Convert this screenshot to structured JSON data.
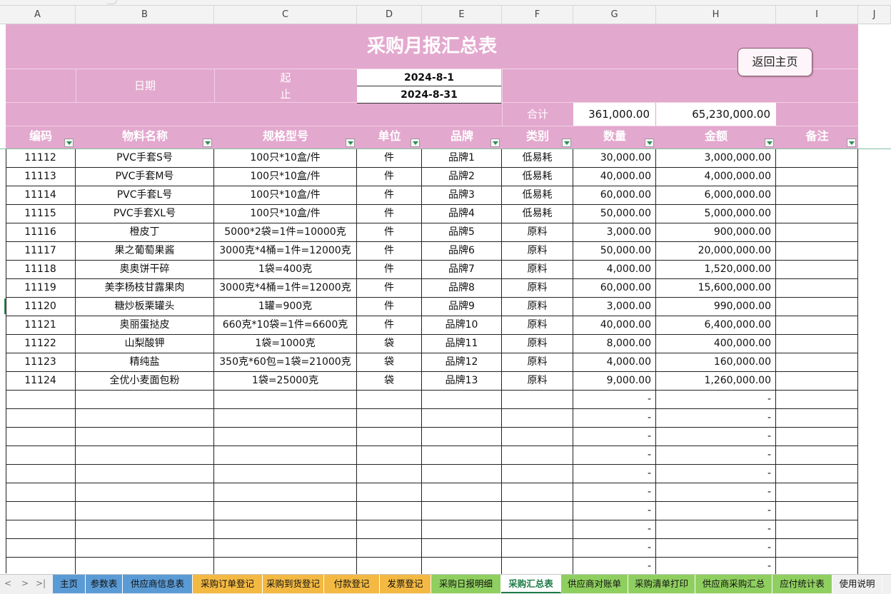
{
  "columns": [
    "A",
    "B",
    "C",
    "D",
    "E",
    "F",
    "G",
    "H",
    "I",
    "J"
  ],
  "title": "采购月报汇总表",
  "date_label": "日期",
  "start_label": "起",
  "end_label": "止",
  "start_date": "2024-8-1",
  "end_date": "2024-8-31",
  "return_button": "返回主页",
  "total_label": "合计",
  "total_qty": "361,000.00",
  "total_amount": "65,230,000.00",
  "headers": [
    "编码",
    "物料名称",
    "规格型号",
    "单位",
    "品牌",
    "类别",
    "数量",
    "金额",
    "备注"
  ],
  "rows": [
    {
      "code": "11112",
      "name": "PVC手套S号",
      "spec": "100只*10盒/件",
      "unit": "件",
      "brand": "品牌1",
      "cat": "低易耗",
      "qty": "30,000.00",
      "amount": "3,000,000.00",
      "note": ""
    },
    {
      "code": "11113",
      "name": "PVC手套M号",
      "spec": "100只*10盒/件",
      "unit": "件",
      "brand": "品牌2",
      "cat": "低易耗",
      "qty": "40,000.00",
      "amount": "4,000,000.00",
      "note": ""
    },
    {
      "code": "11114",
      "name": "PVC手套L号",
      "spec": "100只*10盒/件",
      "unit": "件",
      "brand": "品牌3",
      "cat": "低易耗",
      "qty": "60,000.00",
      "amount": "6,000,000.00",
      "note": ""
    },
    {
      "code": "11115",
      "name": "PVC手套XL号",
      "spec": "100只*10盒/件",
      "unit": "件",
      "brand": "品牌4",
      "cat": "低易耗",
      "qty": "50,000.00",
      "amount": "5,000,000.00",
      "note": ""
    },
    {
      "code": "11116",
      "name": "橙皮丁",
      "spec": "5000*2袋=1件=10000克",
      "unit": "件",
      "brand": "品牌5",
      "cat": "原料",
      "qty": "3,000.00",
      "amount": "900,000.00",
      "note": ""
    },
    {
      "code": "11117",
      "name": "果之葡萄果酱",
      "spec": "3000克*4桶=1件=12000克",
      "unit": "件",
      "brand": "品牌6",
      "cat": "原料",
      "qty": "50,000.00",
      "amount": "20,000,000.00",
      "note": ""
    },
    {
      "code": "11118",
      "name": "奥奥饼干碎",
      "spec": "1袋=400克",
      "unit": "件",
      "brand": "品牌7",
      "cat": "原料",
      "qty": "4,000.00",
      "amount": "1,520,000.00",
      "note": ""
    },
    {
      "code": "11119",
      "name": "美李杨枝甘露果肉",
      "spec": "3000克*4桶=1件=12000克",
      "unit": "件",
      "brand": "品牌8",
      "cat": "原料",
      "qty": "60,000.00",
      "amount": "15,600,000.00",
      "note": ""
    },
    {
      "code": "11120",
      "name": "糖炒板栗罐头",
      "spec": "1罐=900克",
      "unit": "件",
      "brand": "品牌9",
      "cat": "原料",
      "qty": "3,000.00",
      "amount": "990,000.00",
      "note": ""
    },
    {
      "code": "11121",
      "name": "奥丽蛋挞皮",
      "spec": "660克*10袋=1件=6600克",
      "unit": "件",
      "brand": "品牌10",
      "cat": "原料",
      "qty": "40,000.00",
      "amount": "6,400,000.00",
      "note": ""
    },
    {
      "code": "11122",
      "name": "山梨酸钾",
      "spec": "1袋=1000克",
      "unit": "袋",
      "brand": "品牌11",
      "cat": "原料",
      "qty": "8,000.00",
      "amount": "400,000.00",
      "note": ""
    },
    {
      "code": "11123",
      "name": "精纯盐",
      "spec": "350克*60包=1袋=21000克",
      "unit": "袋",
      "brand": "品牌12",
      "cat": "原料",
      "qty": "4,000.00",
      "amount": "160,000.00",
      "note": ""
    },
    {
      "code": "11124",
      "name": "全优小麦面包粉",
      "spec": "1袋=25000克",
      "unit": "袋",
      "brand": "品牌13",
      "cat": "原料",
      "qty": "9,000.00",
      "amount": "1,260,000.00",
      "note": ""
    },
    {
      "code": "",
      "name": "",
      "spec": "",
      "unit": "",
      "brand": "",
      "cat": "",
      "qty": "-",
      "amount": "-",
      "note": ""
    },
    {
      "code": "",
      "name": "",
      "spec": "",
      "unit": "",
      "brand": "",
      "cat": "",
      "qty": "-",
      "amount": "-",
      "note": ""
    },
    {
      "code": "",
      "name": "",
      "spec": "",
      "unit": "",
      "brand": "",
      "cat": "",
      "qty": "-",
      "amount": "-",
      "note": ""
    },
    {
      "code": "",
      "name": "",
      "spec": "",
      "unit": "",
      "brand": "",
      "cat": "",
      "qty": "-",
      "amount": "-",
      "note": ""
    },
    {
      "code": "",
      "name": "",
      "spec": "",
      "unit": "",
      "brand": "",
      "cat": "",
      "qty": "-",
      "amount": "-",
      "note": ""
    },
    {
      "code": "",
      "name": "",
      "spec": "",
      "unit": "",
      "brand": "",
      "cat": "",
      "qty": "-",
      "amount": "-",
      "note": ""
    },
    {
      "code": "",
      "name": "",
      "spec": "",
      "unit": "",
      "brand": "",
      "cat": "",
      "qty": "-",
      "amount": "-",
      "note": ""
    },
    {
      "code": "",
      "name": "",
      "spec": "",
      "unit": "",
      "brand": "",
      "cat": "",
      "qty": "-",
      "amount": "-",
      "note": ""
    },
    {
      "code": "",
      "name": "",
      "spec": "",
      "unit": "",
      "brand": "",
      "cat": "",
      "qty": "-",
      "amount": "-",
      "note": ""
    },
    {
      "code": "",
      "name": "",
      "spec": "",
      "unit": "",
      "brand": "",
      "cat": "",
      "qty": "-",
      "amount": "-",
      "note": ""
    }
  ],
  "sheet_tabs": [
    {
      "label": "主页",
      "color": "#5b9bd5",
      "active": false
    },
    {
      "label": "参数表",
      "color": "#5b9bd5",
      "active": false
    },
    {
      "label": "供应商信息表",
      "color": "#5b9bd5",
      "active": false
    },
    {
      "label": "采购订单登记",
      "color": "#f4b942",
      "active": false
    },
    {
      "label": "采购到货登记",
      "color": "#f4b942",
      "active": false
    },
    {
      "label": "付款登记",
      "color": "#f4b942",
      "active": false
    },
    {
      "label": "发票登记",
      "color": "#f4b942",
      "active": false
    },
    {
      "label": "采购日报明细",
      "color": "#8fcf5f",
      "active": false
    },
    {
      "label": "采购汇总表",
      "color": "#ffffff",
      "active": true
    },
    {
      "label": "供应商对账单",
      "color": "#8fcf5f",
      "active": false
    },
    {
      "label": "采购清单打印",
      "color": "#8fcf5f",
      "active": false
    },
    {
      "label": "供应商采购汇总",
      "color": "#8fcf5f",
      "active": false
    },
    {
      "label": "应付统计表",
      "color": "#8fcf5f",
      "active": false
    },
    {
      "label": "使用说明",
      "color": "#f0f0f0",
      "active": false
    }
  ],
  "colors": {
    "header_pink": "#e3a8ce",
    "active_tab": "#1d7a47"
  }
}
